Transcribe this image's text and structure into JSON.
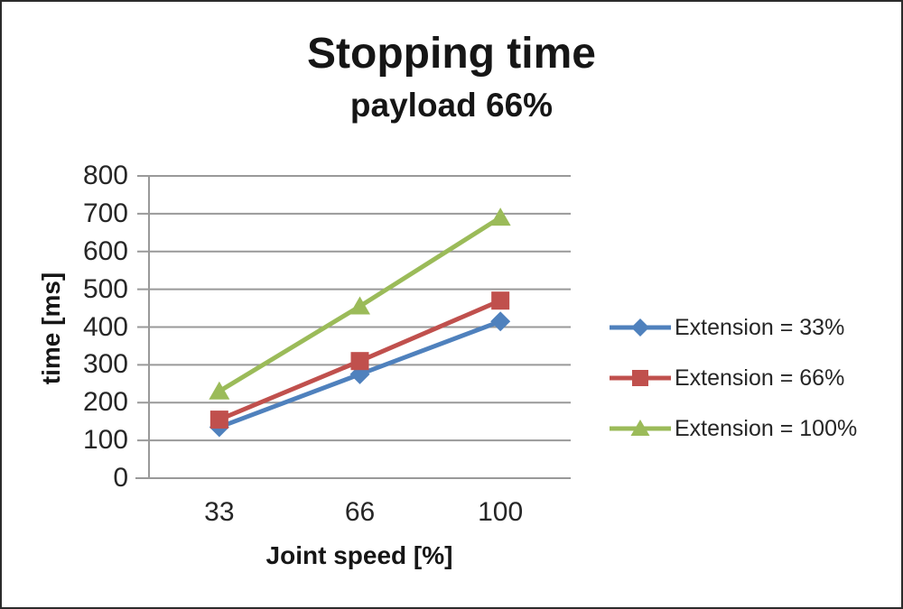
{
  "chart_data": {
    "type": "line",
    "title": "Stopping time",
    "subtitle": "payload 66%",
    "xlabel": "Joint speed [%]",
    "ylabel": "time [ms]",
    "categories": [
      "33",
      "66",
      "100"
    ],
    "series": [
      {
        "name": "Extension = 33%",
        "values": [
          135,
          275,
          415
        ],
        "color": "#4F81BD",
        "marker": "diamond"
      },
      {
        "name": "Extension = 66%",
        "values": [
          155,
          310,
          470
        ],
        "color": "#C0504D",
        "marker": "square"
      },
      {
        "name": "Extension = 100%",
        "values": [
          230,
          455,
          690
        ],
        "color": "#9BBB59",
        "marker": "triangle"
      }
    ],
    "ylim": [
      0,
      800
    ],
    "ytick_step": 100,
    "grid": true,
    "legend_position": "right",
    "colors": {
      "gridline": "#999999",
      "axis_line": "#999999",
      "text": "#262626",
      "title_text": "#161616"
    }
  }
}
